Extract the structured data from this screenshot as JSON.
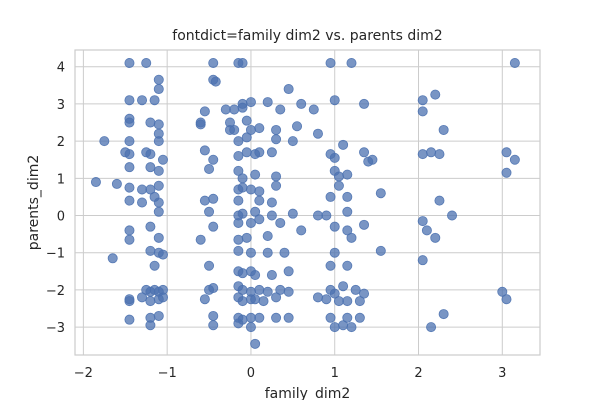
{
  "chart_data": {
    "type": "scatter",
    "title": "fontdict=family dim2 vs. parents dim2",
    "xlabel": "family_dim2",
    "ylabel": "parents_dim2",
    "xlim": [
      -2.1,
      3.45
    ],
    "ylim": [
      -3.75,
      4.45
    ],
    "xticks": [
      -2,
      -1,
      0,
      1,
      2,
      3
    ],
    "yticks": [
      -3,
      -2,
      -1,
      0,
      1,
      2,
      3,
      4
    ],
    "grid": true,
    "marker_color": "#4c72b0",
    "marker_opacity": 0.75,
    "points": [
      [
        -1.45,
        4.1
      ],
      [
        -1.25,
        4.1
      ],
      [
        -0.45,
        4.1
      ],
      [
        -0.15,
        4.1
      ],
      [
        -0.1,
        4.1
      ],
      [
        0.95,
        4.1
      ],
      [
        1.2,
        4.1
      ],
      [
        3.15,
        4.1
      ],
      [
        -1.1,
        3.65
      ],
      [
        -0.45,
        3.65
      ],
      [
        -0.42,
        3.6
      ],
      [
        0.45,
        3.4
      ],
      [
        -1.1,
        3.4
      ],
      [
        -1.45,
        3.1
      ],
      [
        -1.3,
        3.1
      ],
      [
        -1.15,
        3.1
      ],
      [
        -0.1,
        3.0
      ],
      [
        0.0,
        3.05
      ],
      [
        0.2,
        3.05
      ],
      [
        0.6,
        3.0
      ],
      [
        1.0,
        3.1
      ],
      [
        1.35,
        3.0
      ],
      [
        2.05,
        3.1
      ],
      [
        2.2,
        3.25
      ],
      [
        -0.55,
        2.8
      ],
      [
        -0.3,
        2.85
      ],
      [
        -0.2,
        2.85
      ],
      [
        -0.1,
        2.9
      ],
      [
        0.35,
        2.85
      ],
      [
        0.75,
        2.85
      ],
      [
        2.05,
        2.8
      ],
      [
        -1.45,
        2.6
      ],
      [
        -1.45,
        2.5
      ],
      [
        -1.2,
        2.5
      ],
      [
        -1.1,
        2.45
      ],
      [
        -0.6,
        2.5
      ],
      [
        -0.6,
        2.45
      ],
      [
        -0.25,
        2.5
      ],
      [
        -0.05,
        2.55
      ],
      [
        0.1,
        2.35
      ],
      [
        0.3,
        2.3
      ],
      [
        -1.1,
        2.2
      ],
      [
        -0.25,
        2.3
      ],
      [
        -0.2,
        2.3
      ],
      [
        0.0,
        2.3
      ],
      [
        0.55,
        2.4
      ],
      [
        0.8,
        2.2
      ],
      [
        2.3,
        2.3
      ],
      [
        -1.75,
        2.0
      ],
      [
        -1.45,
        2.0
      ],
      [
        -1.1,
        2.0
      ],
      [
        -0.15,
        2.0
      ],
      [
        -0.05,
        2.1
      ],
      [
        0.3,
        2.05
      ],
      [
        0.5,
        2.0
      ],
      [
        1.1,
        1.9
      ],
      [
        -1.5,
        1.7
      ],
      [
        -1.45,
        1.65
      ],
      [
        -1.25,
        1.7
      ],
      [
        -1.2,
        1.65
      ],
      [
        -1.05,
        1.5
      ],
      [
        -0.55,
        1.75
      ],
      [
        -0.45,
        1.5
      ],
      [
        -0.15,
        1.6
      ],
      [
        -0.05,
        1.7
      ],
      [
        0.05,
        1.65
      ],
      [
        0.1,
        1.7
      ],
      [
        0.25,
        1.7
      ],
      [
        0.95,
        1.65
      ],
      [
        1.0,
        1.55
      ],
      [
        1.35,
        1.7
      ],
      [
        1.4,
        1.45
      ],
      [
        1.45,
        1.5
      ],
      [
        2.05,
        1.65
      ],
      [
        2.15,
        1.7
      ],
      [
        2.25,
        1.65
      ],
      [
        3.05,
        1.7
      ],
      [
        3.15,
        1.5
      ],
      [
        -1.45,
        1.3
      ],
      [
        -1.2,
        1.3
      ],
      [
        -1.1,
        1.2
      ],
      [
        -0.5,
        1.25
      ],
      [
        -0.15,
        1.2
      ],
      [
        -0.1,
        1.0
      ],
      [
        0.05,
        1.1
      ],
      [
        0.3,
        1.05
      ],
      [
        1.0,
        1.2
      ],
      [
        1.05,
        1.05
      ],
      [
        1.15,
        1.1
      ],
      [
        3.05,
        1.15
      ],
      [
        -1.85,
        0.9
      ],
      [
        -1.6,
        0.85
      ],
      [
        -1.45,
        0.75
      ],
      [
        -1.3,
        0.7
      ],
      [
        -1.2,
        0.7
      ],
      [
        -1.1,
        0.8
      ],
      [
        -0.15,
        0.7
      ],
      [
        -0.1,
        0.75
      ],
      [
        0.0,
        0.7
      ],
      [
        0.1,
        0.65
      ],
      [
        0.3,
        0.8
      ],
      [
        1.05,
        0.8
      ],
      [
        1.55,
        0.6
      ],
      [
        -1.45,
        0.4
      ],
      [
        -1.3,
        0.35
      ],
      [
        -1.15,
        0.5
      ],
      [
        -1.1,
        0.35
      ],
      [
        -0.55,
        0.4
      ],
      [
        -0.45,
        0.45
      ],
      [
        -0.15,
        0.4
      ],
      [
        0.1,
        0.4
      ],
      [
        0.25,
        0.35
      ],
      [
        0.95,
        0.5
      ],
      [
        1.15,
        0.5
      ],
      [
        2.25,
        0.4
      ],
      [
        -1.1,
        0.1
      ],
      [
        -0.5,
        0.1
      ],
      [
        -0.15,
        0.0
      ],
      [
        -0.1,
        0.05
      ],
      [
        0.05,
        0.1
      ],
      [
        0.25,
        0.0
      ],
      [
        0.5,
        0.05
      ],
      [
        0.8,
        0.0
      ],
      [
        0.9,
        0.0
      ],
      [
        1.15,
        0.1
      ],
      [
        2.05,
        -0.15
      ],
      [
        2.4,
        0.0
      ],
      [
        -1.45,
        -0.4
      ],
      [
        -1.2,
        -0.3
      ],
      [
        -0.45,
        -0.3
      ],
      [
        -0.15,
        -0.2
      ],
      [
        0.0,
        -0.2
      ],
      [
        0.1,
        -0.1
      ],
      [
        0.35,
        -0.2
      ],
      [
        0.6,
        -0.4
      ],
      [
        1.0,
        -0.3
      ],
      [
        1.15,
        -0.4
      ],
      [
        1.35,
        -0.25
      ],
      [
        2.1,
        -0.4
      ],
      [
        2.2,
        -0.6
      ],
      [
        -1.45,
        -0.65
      ],
      [
        -1.1,
        -0.6
      ],
      [
        -0.6,
        -0.65
      ],
      [
        -0.15,
        -0.65
      ],
      [
        -0.05,
        -0.6
      ],
      [
        0.2,
        -0.55
      ],
      [
        1.2,
        -0.6
      ],
      [
        -1.65,
        -1.15
      ],
      [
        -1.2,
        -0.95
      ],
      [
        -1.1,
        -1.0
      ],
      [
        -1.05,
        -1.05
      ],
      [
        -0.15,
        -0.95
      ],
      [
        0.0,
        -1.0
      ],
      [
        0.2,
        -1.0
      ],
      [
        0.4,
        -1.0
      ],
      [
        1.0,
        -1.0
      ],
      [
        1.55,
        -0.95
      ],
      [
        2.05,
        -1.2
      ],
      [
        -1.15,
        -1.35
      ],
      [
        -0.5,
        -1.35
      ],
      [
        -0.15,
        -1.5
      ],
      [
        -0.1,
        -1.55
      ],
      [
        0.0,
        -1.5
      ],
      [
        0.05,
        -1.6
      ],
      [
        0.25,
        -1.6
      ],
      [
        0.45,
        -1.5
      ],
      [
        0.95,
        -1.35
      ],
      [
        1.15,
        -1.35
      ],
      [
        -1.25,
        -2.0
      ],
      [
        -1.2,
        -2.05
      ],
      [
        -1.15,
        -2.0
      ],
      [
        -1.1,
        -2.05
      ],
      [
        -1.05,
        -2.0
      ],
      [
        -0.5,
        -2.0
      ],
      [
        -0.45,
        -1.95
      ],
      [
        -0.15,
        -1.9
      ],
      [
        -0.1,
        -2.0
      ],
      [
        0.0,
        -2.05
      ],
      [
        0.1,
        -2.0
      ],
      [
        0.2,
        -2.05
      ],
      [
        0.35,
        -2.0
      ],
      [
        0.45,
        -2.05
      ],
      [
        0.8,
        -2.2
      ],
      [
        0.95,
        -2.0
      ],
      [
        1.0,
        -2.1
      ],
      [
        1.1,
        -1.9
      ],
      [
        1.25,
        -2.0
      ],
      [
        1.35,
        -2.1
      ],
      [
        3.0,
        -2.05
      ],
      [
        -1.45,
        -2.25
      ],
      [
        -1.45,
        -2.3
      ],
      [
        -1.3,
        -2.2
      ],
      [
        -1.2,
        -2.3
      ],
      [
        -1.1,
        -2.25
      ],
      [
        -1.05,
        -2.2
      ],
      [
        -0.55,
        -2.25
      ],
      [
        -0.15,
        -2.2
      ],
      [
        -0.1,
        -2.3
      ],
      [
        0.0,
        -2.25
      ],
      [
        0.05,
        -2.25
      ],
      [
        0.15,
        -2.3
      ],
      [
        0.3,
        -2.2
      ],
      [
        0.9,
        -2.25
      ],
      [
        1.05,
        -2.3
      ],
      [
        1.15,
        -2.3
      ],
      [
        1.3,
        -2.3
      ],
      [
        3.05,
        -2.25
      ],
      [
        -1.2,
        -2.75
      ],
      [
        -1.1,
        -2.7
      ],
      [
        -0.45,
        -2.7
      ],
      [
        -0.15,
        -2.75
      ],
      [
        -0.1,
        -2.8
      ],
      [
        0.0,
        -2.75
      ],
      [
        0.1,
        -2.75
      ],
      [
        0.3,
        -2.75
      ],
      [
        0.45,
        -2.75
      ],
      [
        0.95,
        -2.75
      ],
      [
        1.15,
        -2.75
      ],
      [
        1.3,
        -2.75
      ],
      [
        2.3,
        -2.65
      ],
      [
        -1.45,
        -2.8
      ],
      [
        -1.2,
        -2.95
      ],
      [
        -0.45,
        -2.95
      ],
      [
        -0.15,
        -2.9
      ],
      [
        0.0,
        -3.0
      ],
      [
        1.0,
        -3.0
      ],
      [
        1.1,
        -2.95
      ],
      [
        1.2,
        -3.0
      ],
      [
        2.15,
        -3.0
      ],
      [
        0.05,
        -3.45
      ]
    ]
  }
}
